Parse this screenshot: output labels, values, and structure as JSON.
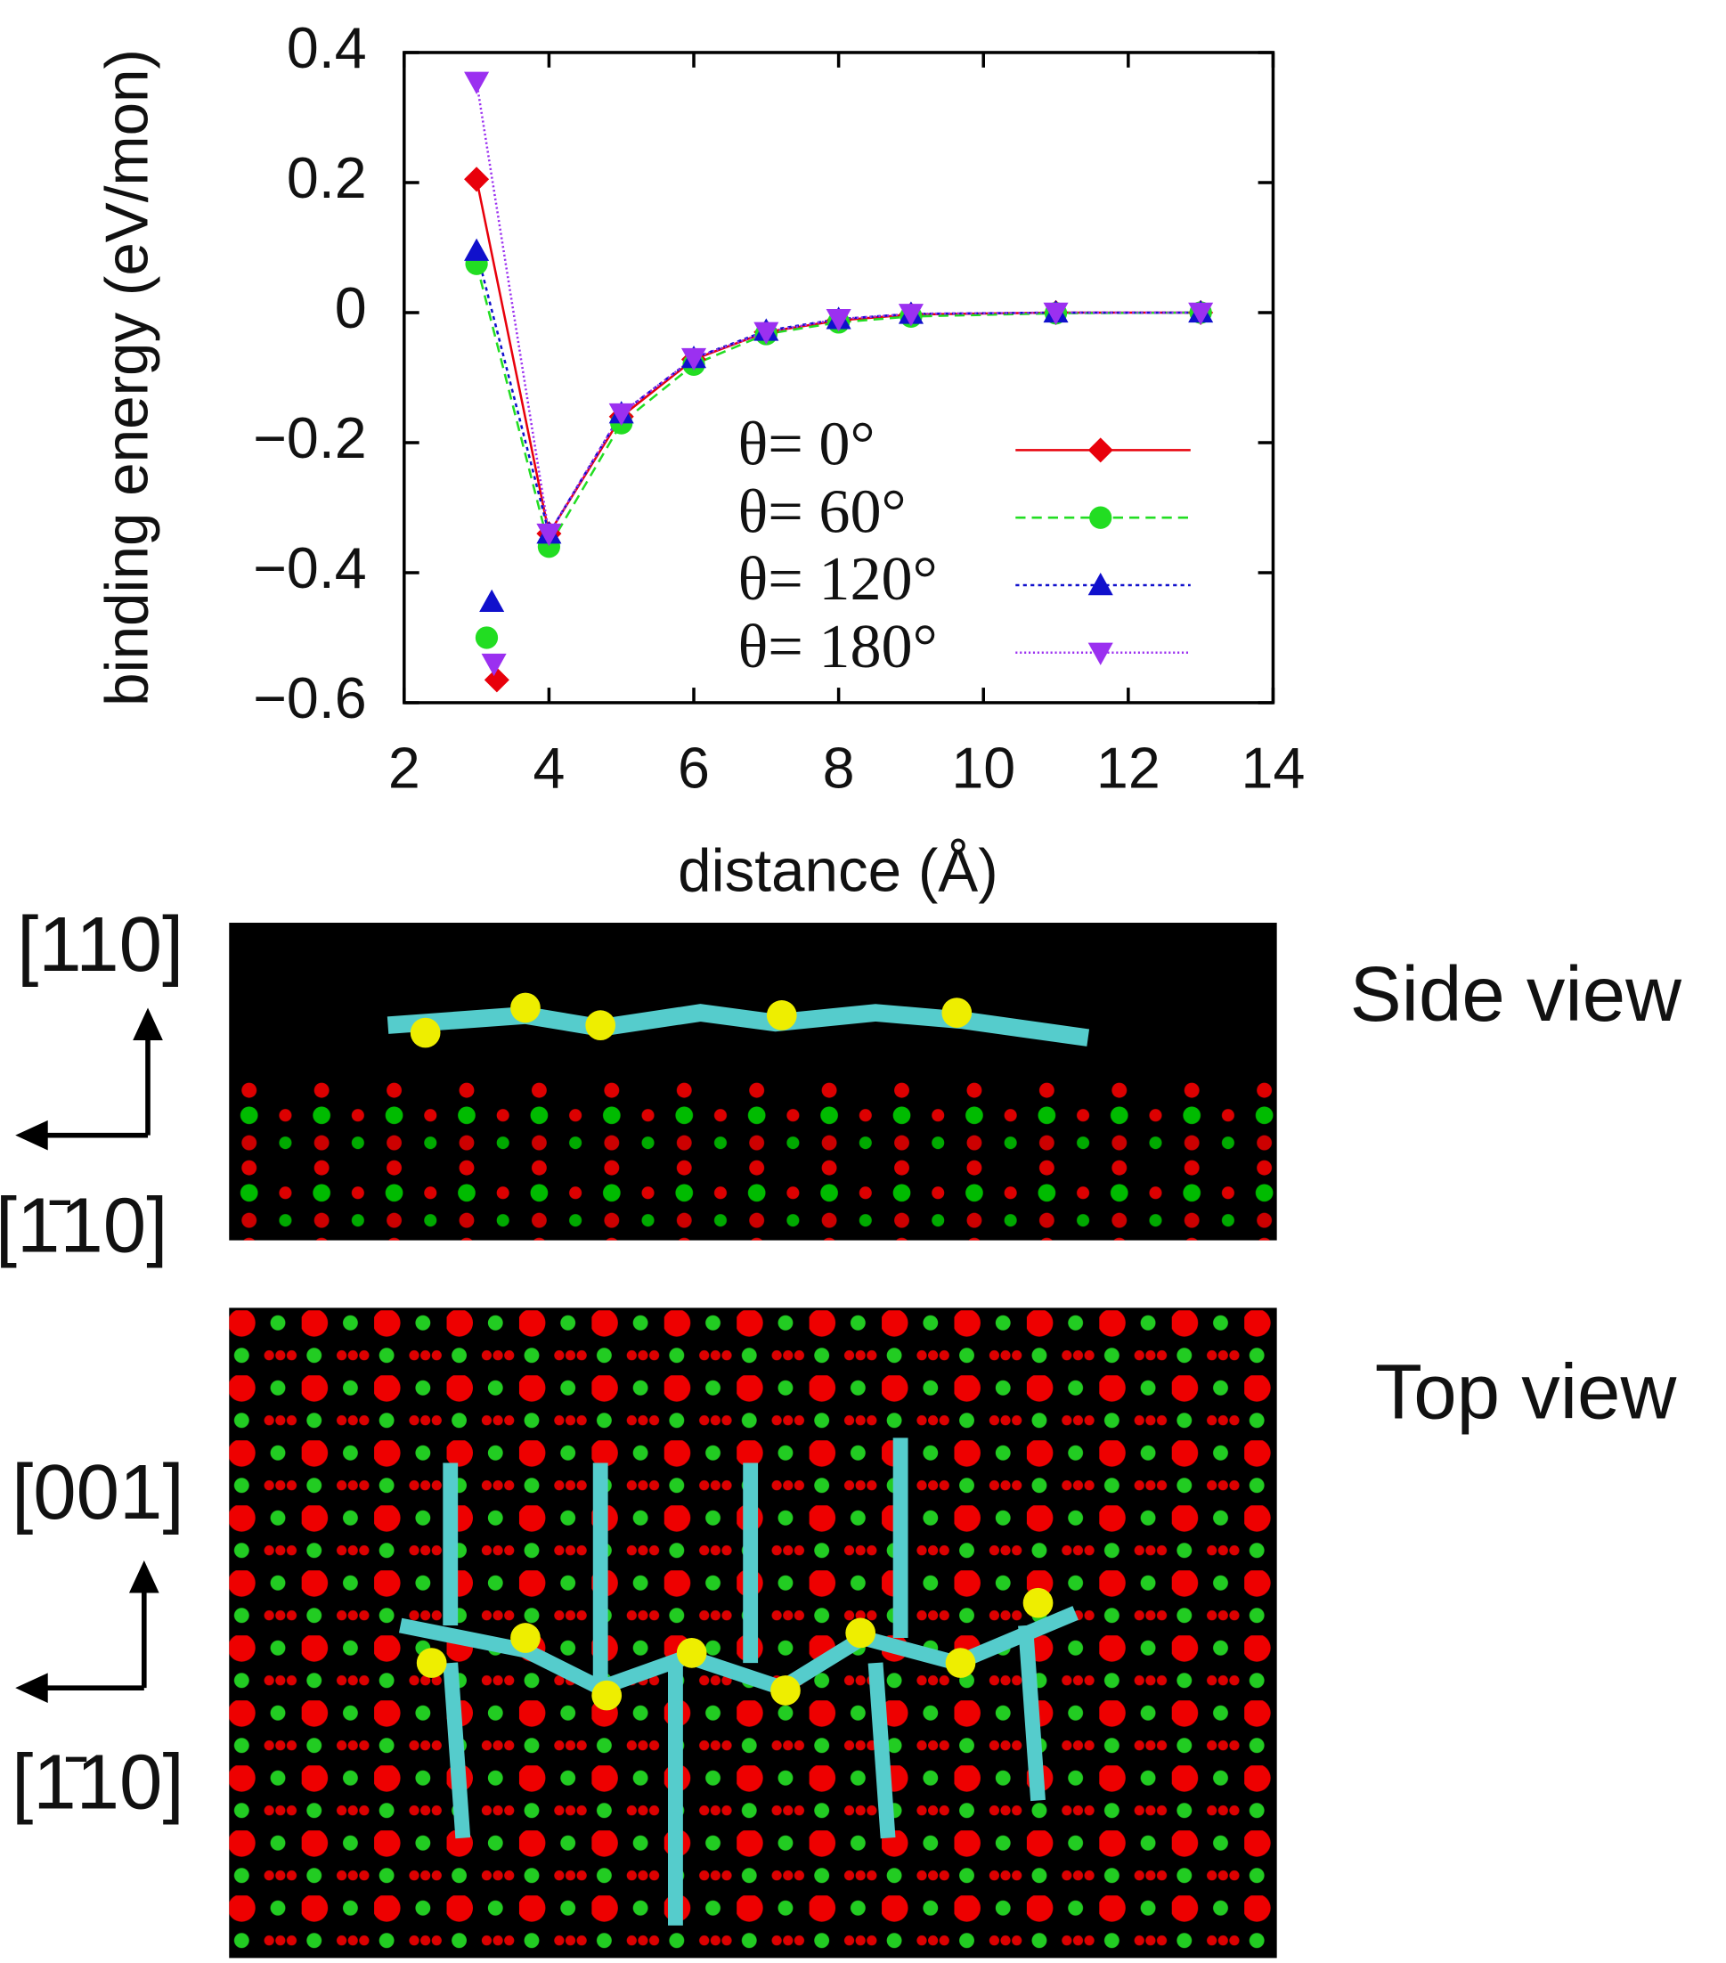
{
  "chart_data": {
    "type": "line",
    "xlabel": "distance (Å)",
    "ylabel": "binding energy (eV/mon)",
    "xlim": [
      2,
      14
    ],
    "xticks": [
      2,
      4,
      6,
      8,
      10,
      12,
      14
    ],
    "ylim": [
      -0.6,
      0.4
    ],
    "yticks": [
      {
        "value": -0.6,
        "label": "−0.6"
      },
      {
        "value": -0.4,
        "label": "−0.4"
      },
      {
        "value": -0.2,
        "label": "−0.2"
      },
      0,
      0.2,
      0.4
    ],
    "x": [
      3,
      4,
      5,
      6,
      7,
      8,
      9,
      11,
      13
    ],
    "series": [
      {
        "name": "θ= 0°",
        "color": "#e8000b",
        "marker": "diamond",
        "dash": "",
        "values": [
          0.205,
          -0.34,
          -0.16,
          -0.072,
          -0.03,
          -0.012,
          -0.003,
          0,
          0
        ],
        "extra_x": [
          3.28
        ],
        "extra_values": [
          -0.565
        ]
      },
      {
        "name": "θ= 60°",
        "color": "#22dd22",
        "marker": "circle",
        "dash": "8 5",
        "values": [
          0.075,
          -0.36,
          -0.17,
          -0.08,
          -0.033,
          -0.015,
          -0.006,
          -0.001,
          0
        ],
        "extra_x": [
          3.14
        ],
        "extra_values": [
          -0.5
        ]
      },
      {
        "name": "θ= 120°",
        "color": "#1010cc",
        "marker": "triangle-up",
        "dash": "3 3",
        "values": [
          0.095,
          -0.34,
          -0.155,
          -0.07,
          -0.028,
          -0.01,
          -0.002,
          0,
          0
        ],
        "extra_x": [
          3.21
        ],
        "extra_values": [
          -0.445
        ]
      },
      {
        "name": "θ= 180°",
        "color": "#9b30f0",
        "marker": "triangle-down",
        "dash": "1.5 2",
        "values": [
          0.355,
          -0.34,
          -0.155,
          -0.07,
          -0.03,
          -0.01,
          -0.002,
          0,
          0
        ],
        "extra_x": [
          3.24
        ],
        "extra_values": [
          -0.54
        ]
      }
    ]
  },
  "figure": {
    "side_axis_up": "[110]",
    "side_axis_left": "[1̄10]",
    "side_label": "Side view",
    "top_axis_up": "[001]",
    "top_axis_left": "[1̄10]",
    "top_label": "Top view"
  }
}
